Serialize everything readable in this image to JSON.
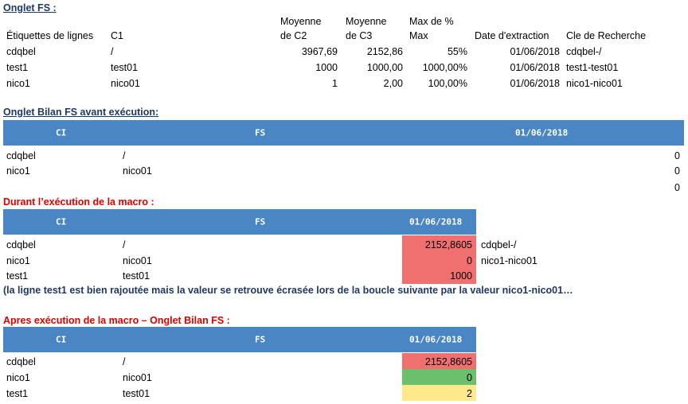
{
  "section1": {
    "title": "Onglet FS :",
    "headers": {
      "etiquettes": "Étiquettes de lignes",
      "c1": "C1",
      "moy_c2_l1": "Moyenne",
      "moy_c2_l2": "de C2",
      "moy_c3_l1": "Moyenne",
      "moy_c3_l2": "de C3",
      "max_l1": "Max de %",
      "max_l2": "Max",
      "date": "Date d'extraction",
      "cle": "Cle de Recherche"
    },
    "rows": [
      {
        "label": "cdqbel",
        "c1": "/",
        "c2": "3967,69",
        "c3": "2152,86",
        "max": "55%",
        "date": "01/06/2018",
        "cle": "cdqbel-/"
      },
      {
        "label": "test1",
        "c1": "test01",
        "c2": "1000",
        "c3": "1000,00",
        "max": "1000,00%",
        "date": "01/06/2018",
        "cle": "test1-test01"
      },
      {
        "label": "nico1",
        "c1": "nico01",
        "c2": "1",
        "c3": "2,00",
        "max": "100,00%",
        "date": "01/06/2018",
        "cle": "nico1-nico01"
      }
    ]
  },
  "section2": {
    "title": "Onglet Bilan FS avant exécution:",
    "header": {
      "ci": "CI",
      "fs": "FS",
      "date": "01/06/2018"
    },
    "rows": [
      {
        "label": "cdqbel",
        "c1": "/",
        "value": "0"
      },
      {
        "label": "nico1",
        "c1": "nico01",
        "value": "0"
      },
      {
        "label": "",
        "c1": "",
        "value": "0"
      }
    ]
  },
  "section3": {
    "title": "Durant l’exécution de la macro :",
    "header": {
      "ci": "CI",
      "fs": "FS",
      "date": "01/06/2018"
    },
    "rows": [
      {
        "label": "cdqbel",
        "c1": "/",
        "value": "2152,8605",
        "key": "cdqbel-/"
      },
      {
        "label": "nico1",
        "c1": "nico01",
        "value": "0",
        "key": "nico1-nico01"
      },
      {
        "label": "test1",
        "c1": "test01",
        "value": "1000",
        "key": ""
      }
    ],
    "note": "(la ligne test1 est bien rajoutée mais la valeur se retrouve écrasée lors de la boucle suivante par la valeur nico1-nico01…"
  },
  "section4": {
    "title": "Apres exécution de la macro – Onglet Bilan FS :",
    "header": {
      "ci": "CI",
      "fs": "FS",
      "date": "01/06/2018"
    },
    "rows": [
      {
        "label": "cdqbel",
        "c1": "/",
        "value": "2152,8605"
      },
      {
        "label": "nico1",
        "c1": "nico01",
        "value": "0"
      },
      {
        "label": "test1",
        "c1": "test01",
        "value": "2"
      }
    ]
  },
  "colors": {
    "header": "#4a86c4",
    "red": "#f07070",
    "green": "#6cbf6c",
    "yellow": "#ffe98a"
  }
}
